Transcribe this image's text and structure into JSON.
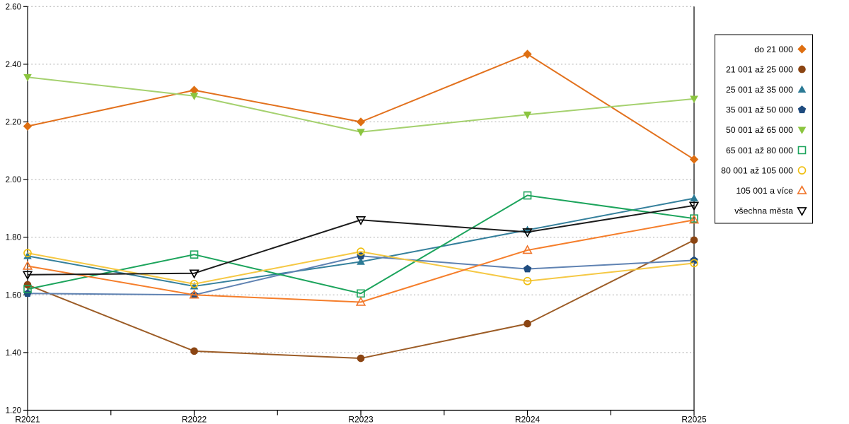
{
  "chart_data": {
    "type": "line",
    "title": "",
    "xlabel": "",
    "ylabel": "",
    "categories": [
      "R2021",
      "R2022",
      "R2023",
      "R2024",
      "R2025"
    ],
    "ylim": [
      1.2,
      2.6
    ],
    "ytick_step": 0.2,
    "ytick_labels": [
      "1.20",
      "1.40",
      "1.60",
      "1.80",
      "2.00",
      "2.20",
      "2.40",
      "2.60"
    ],
    "grid": "horizontal-dotted",
    "legend_position": "right",
    "series": [
      {
        "name": "do 21 000",
        "marker": "diamond",
        "fill": "solid",
        "line_color": "#E2711D",
        "marker_color": "#DE6F12",
        "values": [
          2.185,
          2.31,
          2.2,
          2.435,
          2.07
        ]
      },
      {
        "name": "21 001 až 25 000",
        "marker": "circle",
        "fill": "solid",
        "line_color": "#9C5C26",
        "marker_color": "#8B4513",
        "values": [
          1.635,
          1.405,
          1.38,
          1.5,
          1.79
        ]
      },
      {
        "name": "25 001 až 35 000",
        "marker": "triangle-up",
        "fill": "solid",
        "line_color": "#35809C",
        "marker_color": "#2B7A95",
        "values": [
          1.735,
          1.63,
          1.715,
          1.825,
          1.935
        ]
      },
      {
        "name": "35 001 až 50 000",
        "marker": "pentagon",
        "fill": "solid",
        "line_color": "#5F82B2",
        "marker_color": "#1F4C7F",
        "values": [
          1.605,
          1.6,
          1.735,
          1.69,
          1.72
        ]
      },
      {
        "name": "50 001 až 65 000",
        "marker": "triangle-down",
        "fill": "solid",
        "line_color": "#A5D16F",
        "marker_color": "#8BC53F",
        "values": [
          2.355,
          2.29,
          2.165,
          2.225,
          2.28
        ]
      },
      {
        "name": "65 001 až 80 000",
        "marker": "square",
        "fill": "open",
        "line_color": "#1CA45C",
        "marker_color": "#1CA45C",
        "values": [
          1.62,
          1.74,
          1.605,
          1.945,
          1.865
        ]
      },
      {
        "name": "80 001 až 105 000",
        "marker": "circle",
        "fill": "open",
        "line_color": "#F5C844",
        "marker_color": "#EFBE0E",
        "values": [
          1.745,
          1.638,
          1.75,
          1.648,
          1.71
        ]
      },
      {
        "name": "105 001 a více",
        "marker": "triangle-up",
        "fill": "open",
        "line_color": "#F57E2B",
        "marker_color": "#F0752B",
        "values": [
          1.7,
          1.6,
          1.575,
          1.755,
          1.86
        ]
      },
      {
        "name": "všechna města",
        "marker": "triangle-down",
        "fill": "open",
        "line_color": "#1C1C1C",
        "marker_color": "#000000",
        "values": [
          1.67,
          1.675,
          1.86,
          1.818,
          1.91
        ]
      }
    ],
    "colors": {
      "grid": "#ADADAD",
      "axis": "#000000",
      "background": "#FFFFFF",
      "legend_border": "#000000"
    }
  }
}
